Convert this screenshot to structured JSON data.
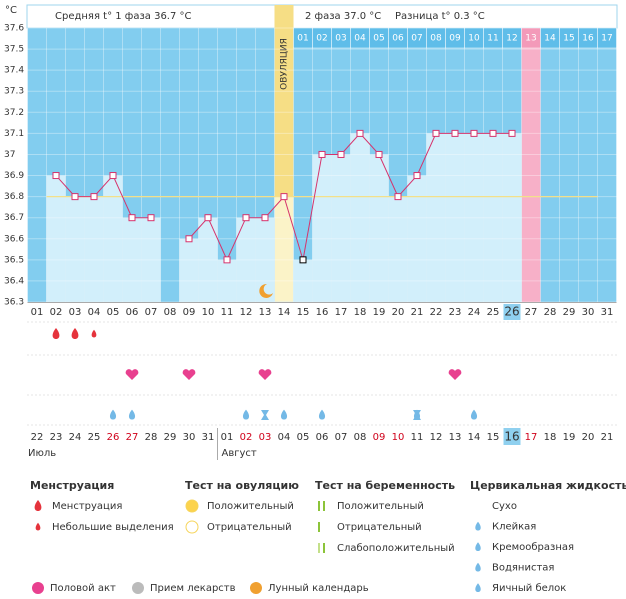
{
  "chart_data": {
    "type": "line",
    "y_unit": "°C",
    "categories": [
      "01",
      "02",
      "03",
      "04",
      "05",
      "06",
      "07",
      "08",
      "09",
      "10",
      "11",
      "12",
      "13",
      "14",
      "15",
      "16",
      "17",
      "18",
      "19",
      "20",
      "21",
      "22",
      "23",
      "24",
      "25",
      "26",
      "27",
      "28",
      "29",
      "30",
      "31"
    ],
    "values": [
      null,
      36.9,
      36.8,
      36.8,
      36.9,
      36.7,
      36.7,
      null,
      36.6,
      36.7,
      36.5,
      36.7,
      36.7,
      36.8,
      36.5,
      37.0,
      37.0,
      37.1,
      37.0,
      36.8,
      36.9,
      37.1,
      37.1,
      37.1,
      37.1,
      37.1,
      null,
      null,
      null,
      null,
      null
    ],
    "color": "#d6336c",
    "coverline": 36.8,
    "ylim": [
      36.3,
      37.6
    ],
    "yticks": [
      36.3,
      36.4,
      36.5,
      36.6,
      36.7,
      36.8,
      36.9,
      37,
      37.1,
      37.2,
      37.3,
      37.4,
      37.5,
      37.6
    ]
  },
  "header": {
    "phase1": "Средняя t° 1 фаза 36.7 °C",
    "phase2": "2 фаза 37.0 °C",
    "diff": "Разница t° 0.3 °C"
  },
  "ovulation_label": "ОВУЛЯЦИЯ",
  "post_ovulation_days": [
    "01",
    "02",
    "03",
    "04",
    "05",
    "06",
    "07",
    "08",
    "09",
    "10",
    "11",
    "12",
    "13",
    "14",
    "15",
    "16",
    "17"
  ],
  "dates": [
    "22",
    "23",
    "24",
    "25",
    "26",
    "27",
    "28",
    "29",
    "30",
    "31",
    "01",
    "02",
    "03",
    "04",
    "05",
    "06",
    "07",
    "08",
    "09",
    "10",
    "11",
    "12",
    "13",
    "14",
    "15",
    "16",
    "17",
    "18",
    "19",
    "20",
    "21"
  ],
  "months": [
    "Июль",
    "Август"
  ],
  "legend": {
    "menstruation": {
      "title": "Менструация",
      "items": [
        "Менструация",
        "Небольшие выделения"
      ]
    },
    "ovulation_test": {
      "title": "Тест на овуляцию",
      "items": [
        "Положительный",
        "Отрицательный"
      ]
    },
    "pregnancy_test": {
      "title": "Тест на беременность",
      "items": [
        "Положительный",
        "Отрицательный",
        "Слабоположительный"
      ]
    },
    "cervical": {
      "title": "Цервикальная жидкость",
      "items": [
        "Сухо",
        "Клейкая",
        "Кремообразная",
        "Водянистая",
        "Яичный белок"
      ]
    },
    "other": [
      "Половой акт",
      "Прием лекарств",
      "Лунный календарь"
    ]
  }
}
